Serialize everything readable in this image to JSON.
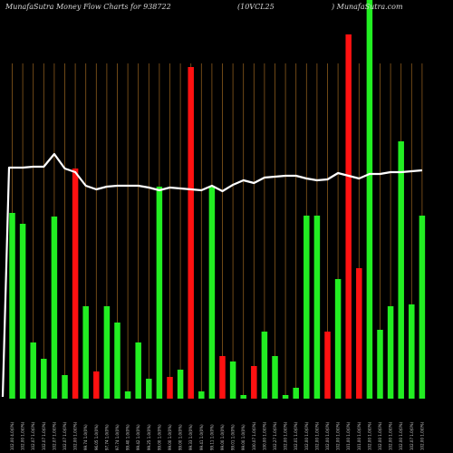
{
  "chart_data": {
    "type": "bar",
    "title_left": "MunafaSutra  Money Flow  Charts for 938722",
    "title_mid": "(10VCL25",
    "title_right": ") MunafaSutra.com",
    "bar_colors": {
      "up": "#22ee22",
      "down": "#ff1111"
    },
    "line_color": "#ffffff",
    "grid_color": "#8a5a1c",
    "bars": [
      {
        "label": "102.00 4.0(0%)",
        "color": "up",
        "value": 205
      },
      {
        "label": "102.00 1.0(0%)",
        "color": "up",
        "value": 193
      },
      {
        "label": "102.07 1.0(0%)",
        "color": "up",
        "value": 62
      },
      {
        "label": "102.07 1.0(0%)",
        "color": "up",
        "value": 44
      },
      {
        "label": "102.07 1.0(0%)",
        "color": "up",
        "value": 201
      },
      {
        "label": "102.07 1.0(0%)",
        "color": "up",
        "value": 26
      },
      {
        "label": "102.00 1.0(0%)",
        "color": "down",
        "value": 254
      },
      {
        "label": "99.74 1.0(0%)",
        "color": "up",
        "value": 102
      },
      {
        "label": "96.05 1.0(0%)",
        "color": "down",
        "value": 30
      },
      {
        "label": "97.74 1.0(0%)",
        "color": "up",
        "value": 102
      },
      {
        "label": "97.74 1.0(0%)",
        "color": "up",
        "value": 84
      },
      {
        "label": "99.40 1.0(0%)",
        "color": "up",
        "value": 8
      },
      {
        "label": "99.42 1.0(0%)",
        "color": "up",
        "value": 62
      },
      {
        "label": "99.25 1.0(0%)",
        "color": "up",
        "value": 22
      },
      {
        "label": "99.00 1.0(0%)",
        "color": "up",
        "value": 234
      },
      {
        "label": "99.00 1.0(0%)",
        "color": "down",
        "value": 24
      },
      {
        "label": "99.00 1.0(0%)",
        "color": "up",
        "value": 32
      },
      {
        "label": "99.33 1.0(0%)",
        "color": "down",
        "value": 366
      },
      {
        "label": "99.41 1.0(0%)",
        "color": "up",
        "value": 8
      },
      {
        "label": "99.11 1.0(0%)",
        "color": "up",
        "value": 234
      },
      {
        "label": "99.00 1.0(0%)",
        "color": "down",
        "value": 47
      },
      {
        "label": "99.01 1.0(0%)",
        "color": "up",
        "value": 41
      },
      {
        "label": "99.00 1.0(0%)",
        "color": "up",
        "value": 4
      },
      {
        "label": "100.07 1.0(0%)",
        "color": "down",
        "value": 36
      },
      {
        "label": "100.00 1.0(0%)",
        "color": "up",
        "value": 74
      },
      {
        "label": "102.27 1.0(0%)",
        "color": "up",
        "value": 47
      },
      {
        "label": "102.00 1.0(0%)",
        "color": "up",
        "value": 4
      },
      {
        "label": "102.01 1.0(0%)",
        "color": "up",
        "value": 12
      },
      {
        "label": "102.00 1.0(0%)",
        "color": "up",
        "value": 202
      },
      {
        "label": "102.00 1.0(0%)",
        "color": "up",
        "value": 202
      },
      {
        "label": "102.00 1.0(0%)",
        "color": "down",
        "value": 74
      },
      {
        "label": "102.00 1.0(0%)",
        "color": "up",
        "value": 132
      },
      {
        "label": "101.00 1.0(0%)",
        "color": "down",
        "value": 402
      },
      {
        "label": "101.00 1.0(0%)",
        "color": "down",
        "value": 144
      },
      {
        "label": "102.00 1.0(0%)",
        "color": "up",
        "value": 445
      },
      {
        "label": "102.00 1.0(0%)",
        "color": "up",
        "value": 76
      },
      {
        "label": "102.00 1.0(0%)",
        "color": "up",
        "value": 102
      },
      {
        "label": "102.00 1.0(0%)",
        "color": "up",
        "value": 284
      },
      {
        "label": "102.07 1.0(0%)",
        "color": "up",
        "value": 104
      },
      {
        "label": "102.00 1.0(0%)",
        "color": "up",
        "value": 202
      }
    ],
    "line": [
      255,
      255,
      256,
      256,
      270,
      254,
      250,
      235,
      231,
      234,
      235,
      235,
      235,
      233,
      230,
      233,
      232,
      231,
      230,
      235,
      229,
      236,
      241,
      238,
      244,
      245,
      246,
      246,
      243,
      241,
      242,
      249,
      246,
      243,
      248,
      248,
      250,
      250,
      251,
      252
    ],
    "ylim": [
      0,
      445
    ]
  }
}
